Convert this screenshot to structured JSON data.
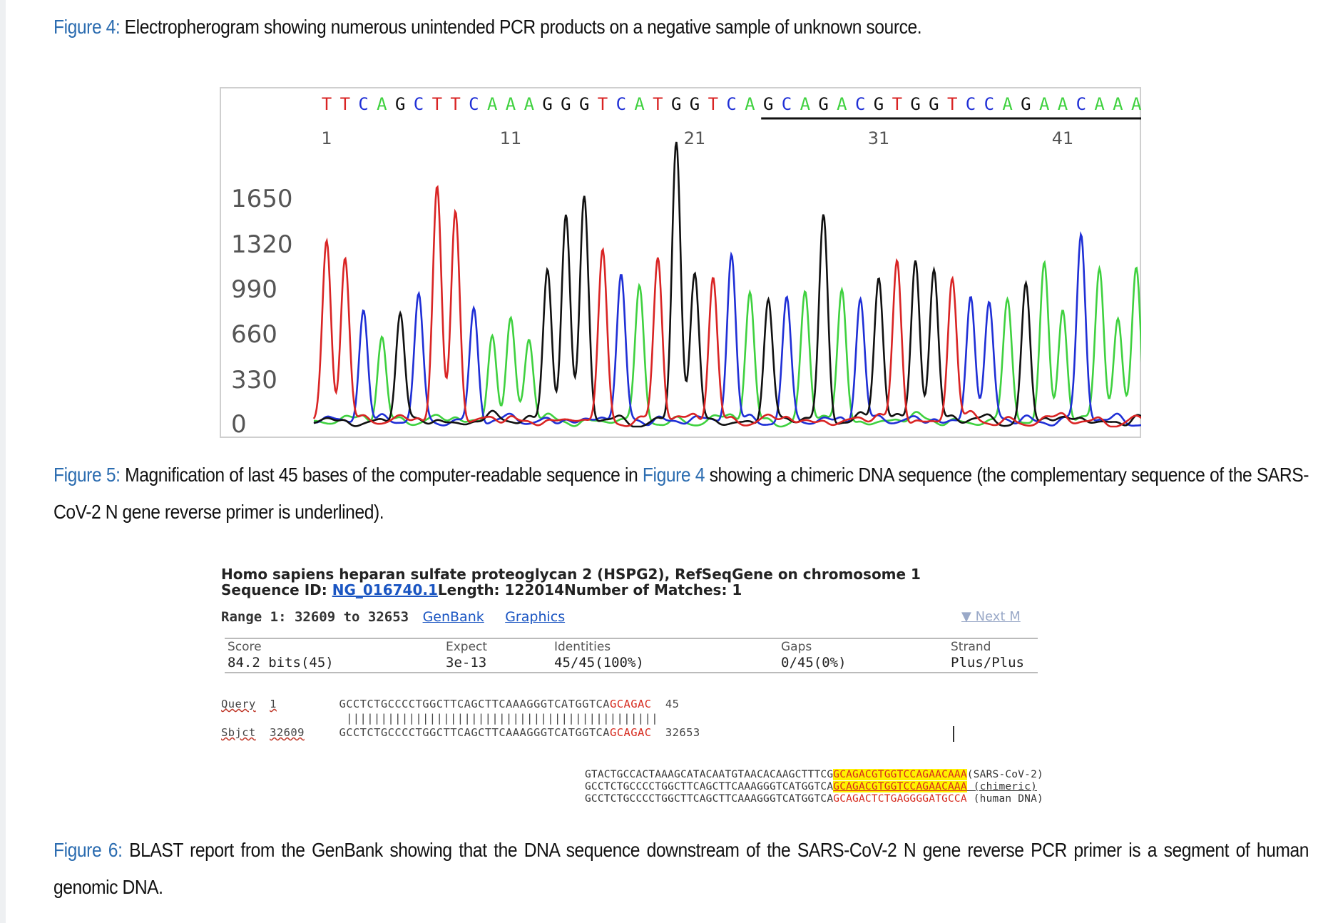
{
  "fig4": {
    "label": "Figure 4:",
    "text": " Electropherogram showing numerous unintended PCR products on a negative sample of unknown source."
  },
  "fig5": {
    "label": "Figure 5:",
    "text_a": " Magnification of last 45 bases of the computer-readable sequence in ",
    "ref": "Figure 4",
    "text_b": " showing a chimeric DNA sequence (the complementary sequence of the SARS-CoV-2 N gene reverse primer is underlined)."
  },
  "fig6": {
    "label": "Figure 6:",
    "text": " BLAST report from the GenBank showing that the DNA sequence downstream of the SARS-CoV-2 N gene reverse PCR primer is a segment of human genomic DNA."
  },
  "chart_data": {
    "type": "line",
    "title": "",
    "bases": "TTCAGCTTCAAAGGGTCATGGTCAGCAGACGTGGTCCAGAACAAA",
    "position_ticks": [
      1,
      11,
      21,
      31,
      41
    ],
    "y_ticks": [
      0,
      330,
      660,
      990,
      1320,
      1650
    ],
    "ylim": [
      0,
      2000
    ],
    "underline_from_base": 25,
    "base_colors": {
      "A": "#3fd13f",
      "C": "#1f2fd6",
      "G": "#111111",
      "T": "#d92424"
    },
    "peak_heights": [
      1280,
      1180,
      820,
      620,
      760,
      880,
      1660,
      1500,
      820,
      640,
      720,
      580,
      1100,
      1460,
      1580,
      1200,
      1020,
      940,
      1160,
      1980,
      1020,
      1040,
      1200,
      920,
      860,
      860,
      900,
      1460,
      920,
      880,
      1020,
      1140,
      1160,
      1080,
      1020,
      900,
      820,
      840,
      980,
      1120,
      820,
      1300,
      1080,
      720,
      1100
    ],
    "grid": false
  },
  "blast": {
    "title": "Homo sapiens heparan sulfate proteoglycan 2 (HSPG2), RefSeqGene on chromosome 1",
    "seq_label": "Sequence ID: ",
    "seq_id": "NG_016740.1",
    "length_text": "Length: 122014Number of Matches: 1",
    "range_label": "Range 1: 32609 to 32653",
    "genbank_link": "GenBank",
    "graphics_link": "Graphics",
    "next_match": "▼ Next M",
    "stats": [
      {
        "header": "Score",
        "value": "84.2 bits(45)"
      },
      {
        "header": "Expect",
        "value": "3e-13"
      },
      {
        "header": "Identities",
        "value": "45/45(100%)"
      },
      {
        "header": "Gaps",
        "value": "0/45(0%)"
      },
      {
        "header": "Strand",
        "value": "Plus/Plus"
      }
    ],
    "query_label": "Query",
    "query_start": "1",
    "query_seq_plain": "GCCTCTGCCCCTGGCTTCAGCTTCAAAGGGTCATGGTCA",
    "query_seq_red": "GCAGAC",
    "query_end": "45",
    "match_line": "|||||||||||||||||||||||||||||||||||||||||||||",
    "sbjct_label": "Sbjct",
    "sbjct_start": "32609",
    "sbjct_seq_plain": "GCCTCTGCCCCTGGCTTCAGCTTCAAAGGGTCATGGTCA",
    "sbjct_seq_red": "GCAGAC",
    "sbjct_end": "32653",
    "compare": [
      {
        "plain": "GTACTGCCACTAAAGCATACAATGTAACACAAGCTTTCG",
        "hl": "GCAGACGTGGTCCAGAACAAA",
        "tail": "",
        "note": "(SARS-CoV-2)"
      },
      {
        "plain": "GCCTCTGCCCCTGGCTTCAGCTTCAAAGGGTCATGGTCA",
        "hl": "GCAGACGTGGTCCAGAACAAA",
        "tail": "",
        "note": " (chimeric)"
      },
      {
        "plain": "GCCTCTGCCCCTGGCTTCAGCTTCAAAGGGTCATGGTCA",
        "hl": "",
        "tail": "GCAGACTCTGAGGGGATGCCA",
        "note": " (human DNA)"
      }
    ]
  }
}
